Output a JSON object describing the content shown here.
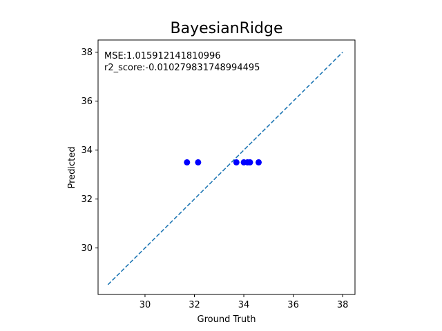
{
  "chart_data": {
    "type": "scatter",
    "title": "BayesianRidge",
    "xlabel": "Ground Truth",
    "ylabel": "Predicted",
    "xlim": [
      28.1,
      38.5
    ],
    "ylim": [
      28.1,
      38.5
    ],
    "xticks": [
      30,
      32,
      34,
      36,
      38
    ],
    "yticks": [
      30,
      32,
      34,
      36,
      38
    ],
    "grid": false,
    "annotations": [
      "MSE:1.015912141810996",
      "r2_score:-0.010279831748994495"
    ],
    "points": {
      "color": "#0000ff",
      "x": [
        31.7,
        32.15,
        33.7,
        34.0,
        34.15,
        34.25,
        34.6
      ],
      "y": [
        33.5,
        33.5,
        33.5,
        33.5,
        33.5,
        33.5,
        33.5
      ]
    },
    "reference_line": {
      "color": "#1f77b4",
      "style": "dashed",
      "x": [
        28.5,
        38.0
      ],
      "y": [
        28.5,
        38.0
      ]
    }
  }
}
